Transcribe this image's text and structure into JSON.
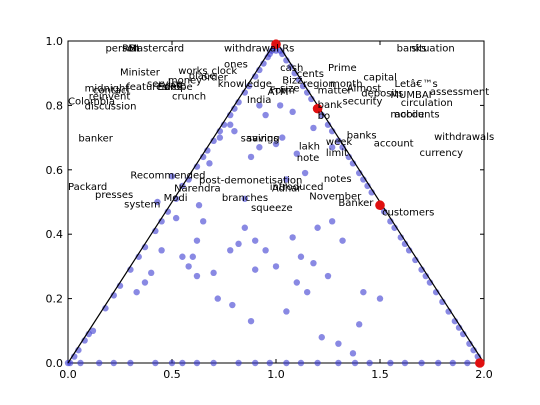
{
  "chart_data": {
    "type": "scatter",
    "title": "",
    "xlabel": "",
    "ylabel": "",
    "xlim": [
      0.0,
      2.0
    ],
    "ylim": [
      0.0,
      1.0
    ],
    "grid": false,
    "xticks": [
      "0.0",
      "0.5",
      "1.0",
      "1.5",
      "2.0"
    ],
    "yticks": [
      "0.0",
      "0.2",
      "0.4",
      "0.6",
      "0.8",
      "1.0"
    ],
    "colors": {
      "points": "#3a3ad0",
      "highlight": "#e01010",
      "line": "#000000"
    },
    "triangle": [
      [
        0.0,
        0.0
      ],
      [
        1.0,
        1.0
      ],
      [
        2.0,
        0.0
      ]
    ],
    "highlight_points": [
      [
        1.0,
        0.99
      ],
      [
        1.2,
        0.79
      ],
      [
        1.5,
        0.49
      ],
      [
        1.98,
        0.0
      ]
    ],
    "words": [
      {
        "text": "person",
        "x": 0.18,
        "y": 0.98
      },
      {
        "text": "RBI",
        "x": 0.26,
        "y": 0.98
      },
      {
        "text": "Mastercard",
        "x": 0.29,
        "y": 0.98
      },
      {
        "text": "withdrawal",
        "x": 0.75,
        "y": 0.98
      },
      {
        "text": "Rs",
        "x": 1.03,
        "y": 0.98
      },
      {
        "text": "banks",
        "x": 1.58,
        "y": 0.98
      },
      {
        "text": "situation",
        "x": 1.65,
        "y": 0.98
      },
      {
        "text": "ones",
        "x": 0.75,
        "y": 0.93
      },
      {
        "text": "cash",
        "x": 1.02,
        "y": 0.92
      },
      {
        "text": "Prime",
        "x": 1.25,
        "y": 0.92
      },
      {
        "text": "works",
        "x": 0.53,
        "y": 0.91
      },
      {
        "text": "clock",
        "x": 0.69,
        "y": 0.91
      },
      {
        "text": "Minister",
        "x": 0.25,
        "y": 0.905
      },
      {
        "text": "place",
        "x": 0.58,
        "y": 0.895
      },
      {
        "text": "order",
        "x": 0.64,
        "y": 0.89
      },
      {
        "text": "cents",
        "x": 1.1,
        "y": 0.9
      },
      {
        "text": "capital",
        "x": 1.42,
        "y": 0.89
      },
      {
        "text": "money",
        "x": 0.48,
        "y": 0.88
      },
      {
        "text": "service",
        "x": 0.38,
        "y": 0.87
      },
      {
        "text": "rate",
        "x": 0.47,
        "y": 0.865
      },
      {
        "text": "knowledge",
        "x": 0.72,
        "y": 0.87
      },
      {
        "text": "region",
        "x": 1.13,
        "y": 0.87
      },
      {
        "text": "month",
        "x": 1.26,
        "y": 0.87
      },
      {
        "text": "Letâ€™s",
        "x": 1.57,
        "y": 0.87
      },
      {
        "text": "Europe",
        "x": 0.43,
        "y": 0.86
      },
      {
        "text": "rides",
        "x": 0.43,
        "y": 0.86
      },
      {
        "text": "midnight",
        "x": 0.08,
        "y": 0.855
      },
      {
        "text": "contact",
        "x": 0.12,
        "y": 0.85
      },
      {
        "text": "features",
        "x": 0.28,
        "y": 0.86
      },
      {
        "text": "Bizz",
        "x": 1.03,
        "y": 0.88
      },
      {
        "text": "matter",
        "x": 1.2,
        "y": 0.85
      },
      {
        "text": "Almost",
        "x": 1.34,
        "y": 0.855
      },
      {
        "text": "assessment",
        "x": 1.74,
        "y": 0.845
      },
      {
        "text": "size",
        "x": 1.02,
        "y": 0.855
      },
      {
        "text": "ATM",
        "x": 0.96,
        "y": 0.845
      },
      {
        "text": "Form",
        "x": 0.97,
        "y": 0.85
      },
      {
        "text": "deposits",
        "x": 1.41,
        "y": 0.84
      },
      {
        "text": "MUMBAI",
        "x": 1.55,
        "y": 0.835
      },
      {
        "text": "reinvent",
        "x": 0.1,
        "y": 0.83
      },
      {
        "text": "crunch",
        "x": 0.5,
        "y": 0.83
      },
      {
        "text": "India",
        "x": 0.86,
        "y": 0.82
      },
      {
        "text": "security",
        "x": 1.32,
        "y": 0.815
      },
      {
        "text": "circulation",
        "x": 1.6,
        "y": 0.81
      },
      {
        "text": "Colombia",
        "x": 0.0,
        "y": 0.815
      },
      {
        "text": "discussion",
        "x": 0.08,
        "y": 0.8
      },
      {
        "text": "bank",
        "x": 1.2,
        "y": 0.805
      },
      {
        "text": "bo",
        "x": 1.2,
        "y": 0.77
      },
      {
        "text": "mobile",
        "x": 1.55,
        "y": 0.775
      },
      {
        "text": "accounts",
        "x": 1.57,
        "y": 0.775
      },
      {
        "text": "banks",
        "x": 1.34,
        "y": 0.71
      },
      {
        "text": "withdrawals",
        "x": 1.76,
        "y": 0.705
      },
      {
        "text": "banker",
        "x": 0.05,
        "y": 0.7
      },
      {
        "text": "savings",
        "x": 0.83,
        "y": 0.7
      },
      {
        "text": "saving",
        "x": 0.86,
        "y": 0.7
      },
      {
        "text": "week",
        "x": 1.24,
        "y": 0.69
      },
      {
        "text": "account",
        "x": 1.47,
        "y": 0.685
      },
      {
        "text": "lakh",
        "x": 1.11,
        "y": 0.675
      },
      {
        "text": "currency",
        "x": 1.69,
        "y": 0.655
      },
      {
        "text": "limit",
        "x": 1.24,
        "y": 0.655
      },
      {
        "text": "note",
        "x": 1.1,
        "y": 0.64
      },
      {
        "text": "Recommended",
        "x": 0.3,
        "y": 0.585
      },
      {
        "text": "notes",
        "x": 1.23,
        "y": 0.575
      },
      {
        "text": "post-demonetisation",
        "x": 0.63,
        "y": 0.57
      },
      {
        "text": "Narendra",
        "x": 0.51,
        "y": 0.545
      },
      {
        "text": "introduced",
        "x": 0.97,
        "y": 0.55
      },
      {
        "text": "Adhar",
        "x": 0.98,
        "y": 0.545
      },
      {
        "text": "Packard",
        "x": 0.0,
        "y": 0.55
      },
      {
        "text": "November",
        "x": 1.16,
        "y": 0.52
      },
      {
        "text": "presses",
        "x": 0.13,
        "y": 0.525
      },
      {
        "text": "Modi",
        "x": 0.46,
        "y": 0.515
      },
      {
        "text": "branches",
        "x": 0.74,
        "y": 0.515
      },
      {
        "text": "Banker",
        "x": 1.3,
        "y": 0.5
      },
      {
        "text": "system",
        "x": 0.27,
        "y": 0.495
      },
      {
        "text": "squeeze",
        "x": 0.88,
        "y": 0.485
      },
      {
        "text": "customers",
        "x": 1.51,
        "y": 0.47
      }
    ],
    "points": [
      [
        0.01,
        0.0
      ],
      [
        0.03,
        0.02
      ],
      [
        0.05,
        0.04
      ],
      [
        0.08,
        0.07
      ],
      [
        0.1,
        0.09
      ],
      [
        0.12,
        0.1
      ],
      [
        0.18,
        0.17
      ],
      [
        0.22,
        0.21
      ],
      [
        0.25,
        0.24
      ],
      [
        0.3,
        0.29
      ],
      [
        0.34,
        0.33
      ],
      [
        0.37,
        0.36
      ],
      [
        0.42,
        0.41
      ],
      [
        0.45,
        0.44
      ],
      [
        0.48,
        0.47
      ],
      [
        0.52,
        0.51
      ],
      [
        0.55,
        0.55
      ],
      [
        0.58,
        0.57
      ],
      [
        0.62,
        0.61
      ],
      [
        0.65,
        0.64
      ],
      [
        0.67,
        0.66
      ],
      [
        0.7,
        0.69
      ],
      [
        0.73,
        0.72
      ],
      [
        0.75,
        0.74
      ],
      [
        0.78,
        0.77
      ],
      [
        0.8,
        0.79
      ],
      [
        0.82,
        0.81
      ],
      [
        0.85,
        0.84
      ],
      [
        0.87,
        0.86
      ],
      [
        0.9,
        0.89
      ],
      [
        0.92,
        0.91
      ],
      [
        0.94,
        0.93
      ],
      [
        0.96,
        0.95
      ],
      [
        0.97,
        0.96
      ],
      [
        0.98,
        0.97
      ],
      [
        0.99,
        0.98
      ],
      [
        1.0,
        0.97
      ],
      [
        1.02,
        0.97
      ],
      [
        1.03,
        0.96
      ],
      [
        1.05,
        0.94
      ],
      [
        1.07,
        0.92
      ],
      [
        1.09,
        0.9
      ],
      [
        1.11,
        0.88
      ],
      [
        1.13,
        0.86
      ],
      [
        1.15,
        0.84
      ],
      [
        1.17,
        0.82
      ],
      [
        1.22,
        0.77
      ],
      [
        1.25,
        0.74
      ],
      [
        1.27,
        0.72
      ],
      [
        1.3,
        0.69
      ],
      [
        1.32,
        0.67
      ],
      [
        1.35,
        0.64
      ],
      [
        1.37,
        0.62
      ],
      [
        1.4,
        0.59
      ],
      [
        1.42,
        0.57
      ],
      [
        1.44,
        0.55
      ],
      [
        1.46,
        0.53
      ],
      [
        1.52,
        0.47
      ],
      [
        1.55,
        0.44
      ],
      [
        1.57,
        0.42
      ],
      [
        1.6,
        0.39
      ],
      [
        1.62,
        0.37
      ],
      [
        1.64,
        0.35
      ],
      [
        1.67,
        0.32
      ],
      [
        1.7,
        0.29
      ],
      [
        1.72,
        0.27
      ],
      [
        1.74,
        0.25
      ],
      [
        1.77,
        0.22
      ],
      [
        1.8,
        0.19
      ],
      [
        1.83,
        0.16
      ],
      [
        1.86,
        0.13
      ],
      [
        1.88,
        0.11
      ],
      [
        1.9,
        0.09
      ],
      [
        1.93,
        0.06
      ],
      [
        1.95,
        0.04
      ],
      [
        1.97,
        0.02
      ],
      [
        0.0,
        0.0
      ],
      [
        0.06,
        0.0
      ],
      [
        0.15,
        0.0
      ],
      [
        0.22,
        0.0
      ],
      [
        0.3,
        0.0
      ],
      [
        0.42,
        0.0
      ],
      [
        0.5,
        0.0
      ],
      [
        0.55,
        0.0
      ],
      [
        0.62,
        0.0
      ],
      [
        0.7,
        0.0
      ],
      [
        0.82,
        0.0
      ],
      [
        0.9,
        0.0
      ],
      [
        0.97,
        0.0
      ],
      [
        1.05,
        0.0
      ],
      [
        1.12,
        0.0
      ],
      [
        1.2,
        0.0
      ],
      [
        1.3,
        0.0
      ],
      [
        1.38,
        0.0
      ],
      [
        1.45,
        0.0
      ],
      [
        1.55,
        0.0
      ],
      [
        1.62,
        0.0
      ],
      [
        1.7,
        0.0
      ],
      [
        1.78,
        0.0
      ],
      [
        1.85,
        0.0
      ],
      [
        1.92,
        0.0
      ],
      [
        0.85,
        0.42
      ],
      [
        0.82,
        0.37
      ],
      [
        0.9,
        0.38
      ],
      [
        0.78,
        0.35
      ],
      [
        0.95,
        0.35
      ],
      [
        1.08,
        0.39
      ],
      [
        1.12,
        0.33
      ],
      [
        1.1,
        0.25
      ],
      [
        1.18,
        0.31
      ],
      [
        1.25,
        0.27
      ],
      [
        0.6,
        0.33
      ],
      [
        0.7,
        0.28
      ],
      [
        0.79,
        0.18
      ],
      [
        0.9,
        0.29
      ],
      [
        1.0,
        0.3
      ],
      [
        1.15,
        0.22
      ],
      [
        1.3,
        0.06
      ],
      [
        1.22,
        0.08
      ],
      [
        1.37,
        0.03
      ],
      [
        1.4,
        0.12
      ],
      [
        0.58,
        0.3
      ],
      [
        0.55,
        0.33
      ],
      [
        0.45,
        0.35
      ],
      [
        0.62,
        0.27
      ],
      [
        0.72,
        0.2
      ],
      [
        0.88,
        0.13
      ],
      [
        1.05,
        0.16
      ],
      [
        1.0,
        0.68
      ],
      [
        1.03,
        0.7
      ],
      [
        1.1,
        0.65
      ],
      [
        0.88,
        0.64
      ],
      [
        0.92,
        0.67
      ],
      [
        1.05,
        0.57
      ],
      [
        1.14,
        0.59
      ],
      [
        1.27,
        0.44
      ],
      [
        1.32,
        0.38
      ],
      [
        1.42,
        0.22
      ],
      [
        1.5,
        0.2
      ],
      [
        1.2,
        0.42
      ],
      [
        0.85,
        0.51
      ],
      [
        0.63,
        0.49
      ],
      [
        0.43,
        0.5
      ],
      [
        0.5,
        0.58
      ],
      [
        0.68,
        0.62
      ],
      [
        0.78,
        0.74
      ],
      [
        0.92,
        0.8
      ],
      [
        0.95,
        0.77
      ],
      [
        1.02,
        0.8
      ],
      [
        1.08,
        0.78
      ],
      [
        1.18,
        0.73
      ],
      [
        1.27,
        0.67
      ],
      [
        0.73,
        0.7
      ],
      [
        0.8,
        0.72
      ],
      [
        0.65,
        0.44
      ],
      [
        0.4,
        0.28
      ],
      [
        0.37,
        0.25
      ],
      [
        0.33,
        0.22
      ],
      [
        0.62,
        0.38
      ],
      [
        0.52,
        0.45
      ]
    ]
  }
}
